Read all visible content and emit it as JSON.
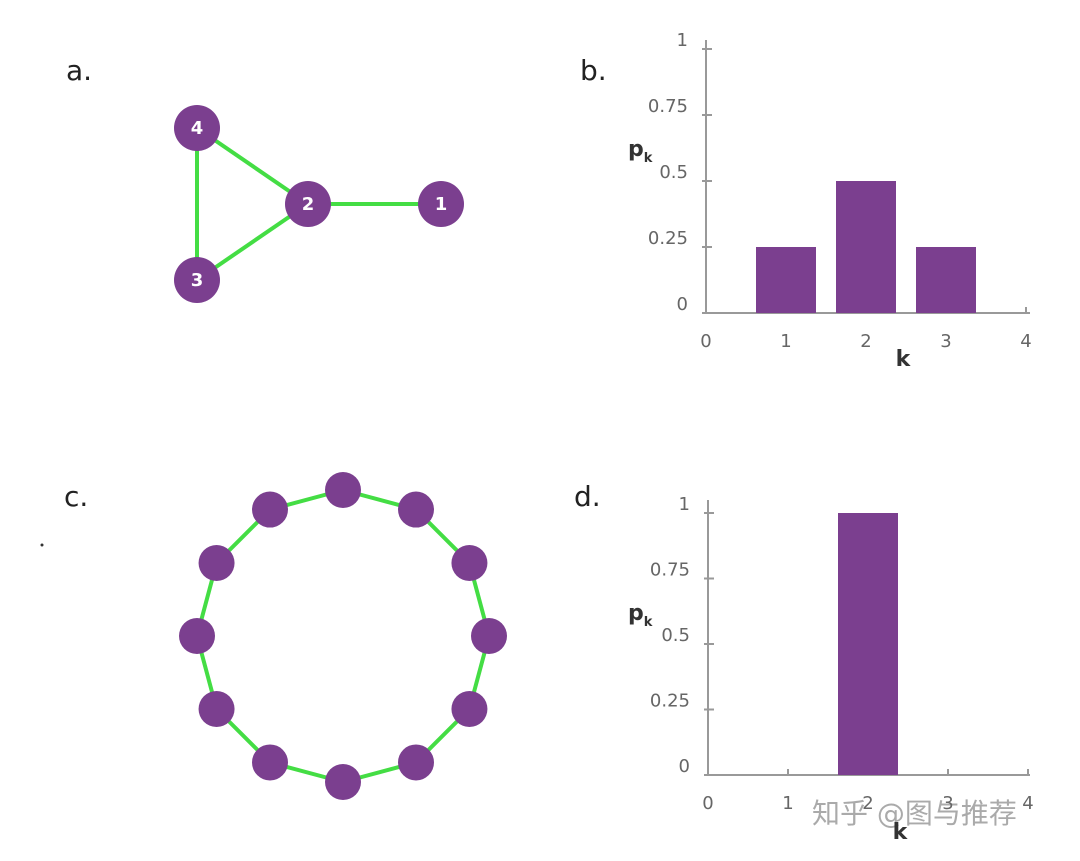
{
  "chart_data": [
    {
      "type": "bar",
      "panel_label": "b.",
      "ylabel": "p",
      "ylabel_sub": "k",
      "xlabel": "k",
      "x": [
        1,
        2,
        3
      ],
      "values": [
        0.25,
        0.5,
        0.25
      ],
      "color": "#7b3f8f",
      "xlim": [
        0,
        4
      ],
      "xticks": [
        0,
        1,
        2,
        3,
        4
      ],
      "ylim": [
        0,
        1
      ],
      "yticks": [
        0,
        0.25,
        0.5,
        0.75,
        1
      ],
      "grid": false
    },
    {
      "type": "bar",
      "panel_label": "d.",
      "ylabel": "p",
      "ylabel_sub": "k",
      "xlabel": "k",
      "x": [
        2
      ],
      "values": [
        1
      ],
      "color": "#7b3f8f",
      "xlim": [
        0,
        4
      ],
      "xticks": [
        0,
        1,
        2,
        3,
        4
      ],
      "ylim": [
        0,
        1
      ],
      "yticks": [
        0,
        0.25,
        0.5,
        0.75,
        1
      ],
      "grid": false
    }
  ],
  "network_a": {
    "panel_label": "a.",
    "nodes": [
      "4",
      "2",
      "1",
      "3"
    ]
  },
  "network_c": {
    "panel_label": "c."
  },
  "watermark": "知乎 @图与推荐"
}
